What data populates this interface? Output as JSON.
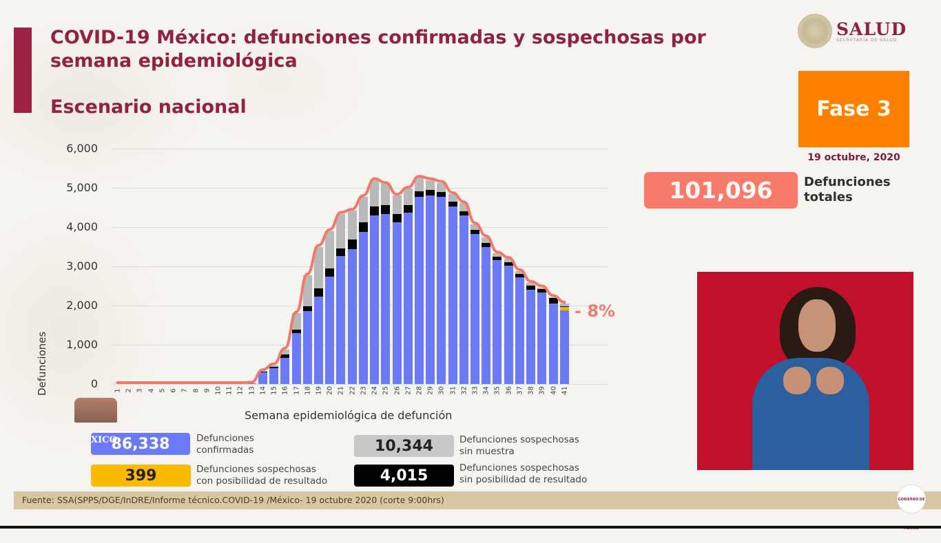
{
  "header": {
    "title": "COVID-19 México: defunciones confirmadas y sospechosas por semana epidemiológica",
    "subtitle": "Escenario nacional"
  },
  "logo": {
    "name": "SALUD",
    "tagline": "SECRETARÍA DE SALUD"
  },
  "phase": {
    "label": "Fase 3",
    "date": "19 octubre, 2020"
  },
  "totals": {
    "value": "101,096",
    "label_line1": "Defunciones",
    "label_line2": "totales"
  },
  "change_label": "- 8%",
  "legend": [
    {
      "value": "86,338",
      "line1": "Defunciones",
      "line2": "confirmadas",
      "color": "#6b7bf7"
    },
    {
      "value": "10,344",
      "line1": "Defunciones sospechosas",
      "line2": "sin muestra",
      "color": "#b9b9b9"
    },
    {
      "value": "399",
      "line1": "Defunciones sospechosas",
      "line2": "con posibilidad de resultado",
      "color": "#f3b400"
    },
    {
      "value": "4,015",
      "line1": "Defunciones sospechosas",
      "line2": "sin posibilidad de resultado",
      "color": "#050505"
    }
  ],
  "overlay_text": "XICO",
  "badge_text": "GOBIERNO DE MÉXICO",
  "footer": {
    "source": "Fuente: SSA(SPPS/DGE/InDRE/Informe técnico.COVID-19 /México- 19 octubre 2020 (corte 9:00hrs)"
  },
  "chart_data": {
    "type": "bar",
    "stacked": true,
    "title": "COVID-19 México: defunciones confirmadas y sospechosas por semana epidemiológica",
    "xlabel": "Semana epidemiológica de defunción",
    "ylabel": "Defunciones",
    "ylim": [
      0,
      6000
    ],
    "yticks": [
      "0",
      "1,000",
      "2,000",
      "3,000",
      "4,000",
      "5,000",
      "6,000"
    ],
    "grid": true,
    "categories": [
      "1",
      "2",
      "3",
      "4",
      "5",
      "6",
      "7",
      "8",
      "9",
      "10",
      "11",
      "12",
      "13",
      "14",
      "15",
      "16",
      "17",
      "18",
      "19",
      "20",
      "21",
      "22",
      "23",
      "24",
      "25",
      "26",
      "27",
      "28",
      "29",
      "30",
      "31",
      "32",
      "33",
      "34",
      "35",
      "36",
      "37",
      "38",
      "39",
      "40",
      "41"
    ],
    "series": [
      {
        "name": "Defunciones confirmadas",
        "color": "#6b7bf7",
        "values": [
          0,
          0,
          0,
          0,
          0,
          0,
          0,
          0,
          0,
          0,
          0,
          0,
          10,
          300,
          400,
          670,
          1300,
          1860,
          2230,
          2740,
          3260,
          3440,
          3880,
          4300,
          4330,
          4120,
          4370,
          4770,
          4810,
          4770,
          4530,
          4300,
          3820,
          3490,
          3160,
          3020,
          2720,
          2400,
          2330,
          2050,
          1880
        ]
      },
      {
        "name": "Defunciones sospechosas con posibilidad de resultado",
        "color": "#f3b400",
        "values": [
          0,
          0,
          0,
          0,
          0,
          0,
          0,
          0,
          0,
          0,
          0,
          0,
          0,
          0,
          0,
          0,
          0,
          0,
          0,
          0,
          0,
          0,
          0,
          0,
          0,
          0,
          0,
          0,
          0,
          0,
          0,
          0,
          0,
          0,
          0,
          0,
          0,
          0,
          5,
          10,
          80
        ]
      },
      {
        "name": "Defunciones sospechosas sin posibilidad de resultado",
        "color": "#050505",
        "values": [
          0,
          0,
          0,
          0,
          0,
          0,
          0,
          0,
          0,
          0,
          0,
          0,
          0,
          20,
          40,
          80,
          90,
          120,
          210,
          210,
          200,
          240,
          240,
          230,
          230,
          210,
          190,
          140,
          140,
          130,
          120,
          100,
          110,
          110,
          90,
          80,
          90,
          110,
          90,
          140,
          20
        ]
      },
      {
        "name": "Defunciones sospechosas sin muestra",
        "color": "#b9b9b9",
        "values": [
          0,
          0,
          0,
          0,
          0,
          0,
          0,
          0,
          0,
          0,
          0,
          0,
          0,
          10,
          40,
          130,
          410,
          790,
          1060,
          950,
          880,
          740,
          650,
          670,
          540,
          470,
          420,
          350,
          250,
          230,
          190,
          210,
          140,
          140,
          80,
          90,
          70,
          70,
          40,
          20,
          70
        ]
      }
    ],
    "trend_line": {
      "name": "Total",
      "color": "#f07a6a",
      "change_label": "- 8%"
    },
    "annotations": [
      "- 8%"
    ],
    "legend_totals": {
      "confirmadas": 86338,
      "sin_muestra": 10344,
      "con_posibilidad": 399,
      "sin_posibilidad": 4015,
      "total": 101096
    }
  }
}
